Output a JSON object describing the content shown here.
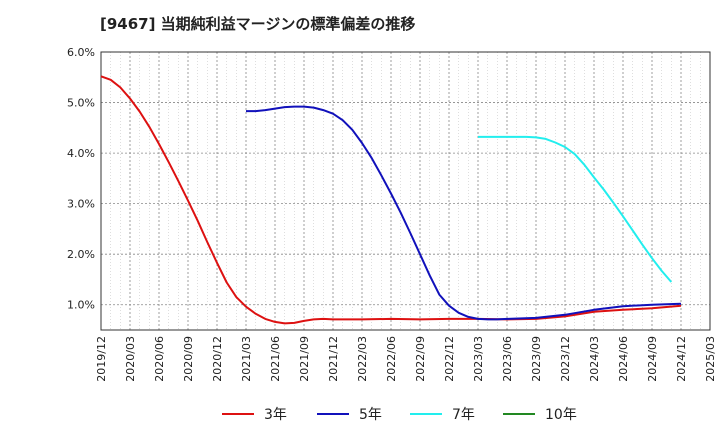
{
  "chart_data": {
    "type": "line",
    "title": "[9467]  当期純利益マージンの標準偏差の推移",
    "xlabel": "",
    "ylabel": "",
    "x_ticks": [
      "2019/12",
      "2020/03",
      "2020/06",
      "2020/09",
      "2020/12",
      "2021/03",
      "2021/06",
      "2021/09",
      "2021/12",
      "2022/03",
      "2022/06",
      "2022/09",
      "2022/12",
      "2023/03",
      "2023/06",
      "2023/09",
      "2023/12",
      "2024/03",
      "2024/06",
      "2024/09",
      "2024/12",
      "2025/03"
    ],
    "ylim": [
      0.5,
      6.0
    ],
    "y_ticks": [
      1.0,
      2.0,
      3.0,
      4.0,
      5.0,
      6.0
    ],
    "y_tick_labels": [
      "1.0%",
      "2.0%",
      "3.0%",
      "4.0%",
      "5.0%",
      "6.0%"
    ],
    "grid": true,
    "legend_position": "bottom",
    "series": [
      {
        "name": "3年",
        "color": "#dd1111",
        "points": [
          [
            "2019/12",
            5.52
          ],
          [
            "2020/01",
            5.45
          ],
          [
            "2020/02",
            5.3
          ],
          [
            "2020/03",
            5.08
          ],
          [
            "2020/04",
            4.82
          ],
          [
            "2020/05",
            4.52
          ],
          [
            "2020/06",
            4.18
          ],
          [
            "2020/07",
            3.82
          ],
          [
            "2020/08",
            3.45
          ],
          [
            "2020/09",
            3.06
          ],
          [
            "2020/10",
            2.66
          ],
          [
            "2020/11",
            2.24
          ],
          [
            "2020/12",
            1.83
          ],
          [
            "2021/01",
            1.44
          ],
          [
            "2021/02",
            1.15
          ],
          [
            "2021/03",
            0.96
          ],
          [
            "2021/04",
            0.82
          ],
          [
            "2021/05",
            0.72
          ],
          [
            "2021/06",
            0.66
          ],
          [
            "2021/07",
            0.63
          ],
          [
            "2021/08",
            0.64
          ],
          [
            "2021/09",
            0.68
          ],
          [
            "2021/10",
            0.71
          ],
          [
            "2021/11",
            0.72
          ],
          [
            "2021/12",
            0.71
          ],
          [
            "2022/03",
            0.71
          ],
          [
            "2022/06",
            0.72
          ],
          [
            "2022/09",
            0.71
          ],
          [
            "2022/12",
            0.72
          ],
          [
            "2023/03",
            0.72
          ],
          [
            "2023/06",
            0.71
          ],
          [
            "2023/09",
            0.72
          ],
          [
            "2023/12",
            0.77
          ],
          [
            "2024/03",
            0.86
          ],
          [
            "2024/06",
            0.9
          ],
          [
            "2024/09",
            0.93
          ],
          [
            "2024/12",
            0.98
          ]
        ]
      },
      {
        "name": "5年",
        "color": "#1111bb",
        "points": [
          [
            "2021/03",
            4.83
          ],
          [
            "2021/04",
            4.83
          ],
          [
            "2021/05",
            4.85
          ],
          [
            "2021/06",
            4.88
          ],
          [
            "2021/07",
            4.91
          ],
          [
            "2021/08",
            4.92
          ],
          [
            "2021/09",
            4.92
          ],
          [
            "2021/10",
            4.9
          ],
          [
            "2021/11",
            4.85
          ],
          [
            "2021/12",
            4.78
          ],
          [
            "2022/01",
            4.65
          ],
          [
            "2022/02",
            4.46
          ],
          [
            "2022/03",
            4.2
          ],
          [
            "2022/04",
            3.9
          ],
          [
            "2022/05",
            3.56
          ],
          [
            "2022/06",
            3.2
          ],
          [
            "2022/07",
            2.82
          ],
          [
            "2022/08",
            2.42
          ],
          [
            "2022/09",
            2.0
          ],
          [
            "2022/10",
            1.58
          ],
          [
            "2022/11",
            1.2
          ],
          [
            "2022/12",
            0.98
          ],
          [
            "2023/01",
            0.84
          ],
          [
            "2023/02",
            0.76
          ],
          [
            "2023/03",
            0.72
          ],
          [
            "2023/04",
            0.71
          ],
          [
            "2023/05",
            0.71
          ],
          [
            "2023/06",
            0.72
          ],
          [
            "2023/09",
            0.74
          ],
          [
            "2023/12",
            0.8
          ],
          [
            "2024/03",
            0.9
          ],
          [
            "2024/06",
            0.97
          ],
          [
            "2024/09",
            1.0
          ],
          [
            "2024/12",
            1.02
          ]
        ]
      },
      {
        "name": "7年",
        "color": "#22eeee",
        "points": [
          [
            "2023/03",
            4.32
          ],
          [
            "2023/04",
            4.32
          ],
          [
            "2023/05",
            4.32
          ],
          [
            "2023/06",
            4.32
          ],
          [
            "2023/07",
            4.32
          ],
          [
            "2023/08",
            4.32
          ],
          [
            "2023/09",
            4.31
          ],
          [
            "2023/10",
            4.28
          ],
          [
            "2023/11",
            4.21
          ],
          [
            "2023/12",
            4.12
          ],
          [
            "2024/01",
            3.98
          ],
          [
            "2024/02",
            3.77
          ],
          [
            "2024/03",
            3.52
          ],
          [
            "2024/04",
            3.28
          ],
          [
            "2024/05",
            3.02
          ],
          [
            "2024/06",
            2.75
          ],
          [
            "2024/07",
            2.47
          ],
          [
            "2024/08",
            2.19
          ],
          [
            "2024/09",
            1.92
          ],
          [
            "2024/10",
            1.67
          ],
          [
            "2024/11",
            1.45
          ]
        ]
      },
      {
        "name": "10年",
        "color": "#228822",
        "points": []
      }
    ]
  }
}
